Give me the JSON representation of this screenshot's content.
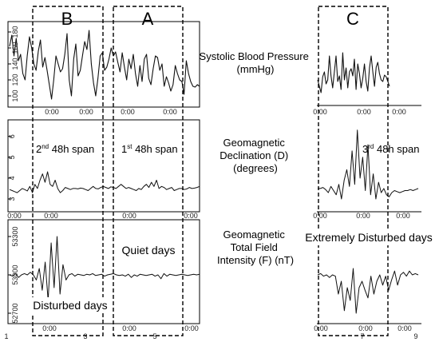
{
  "sections": [
    {
      "letter": "B"
    },
    {
      "letter": "A"
    },
    {
      "letter": "C"
    }
  ],
  "panel_titles": {
    "bp": [
      "Systolic Blood Pressure",
      "(mmHg)"
    ],
    "dec": [
      "Geomagnetic",
      "Declination (D)",
      "(degrees)"
    ],
    "tot": [
      "Geomagnetic",
      "Total Field",
      "Intensity (F) (nT)"
    ]
  },
  "span_labels": {
    "b": {
      "num": "2",
      "sup": "nd",
      "rest": " 48h span"
    },
    "a": {
      "num": "1",
      "sup": "st",
      "rest": " 48h span"
    },
    "c": {
      "num": "3",
      "sup": "rd",
      "rest": " 48h span"
    }
  },
  "annotations": {
    "quiet": "Quiet days",
    "disturbed": "Disturbed days",
    "extreme": "Extremely Disturbed days"
  },
  "time_tick_label": "0:00",
  "colors": {
    "line": "#111111",
    "box": "#000000",
    "frame": "#000000"
  },
  "chart_data": [
    {
      "type": "line",
      "id": "bp-left",
      "ylabel_ticks": [
        100,
        120,
        140,
        160,
        180
      ],
      "ylim": [
        90,
        190
      ],
      "values": [
        162,
        176,
        150,
        172,
        144,
        152,
        128,
        120,
        150,
        174,
        160,
        140,
        132,
        156,
        170,
        136,
        148,
        132,
        114,
        96,
        120,
        150,
        140,
        130,
        134,
        152,
        178,
        120,
        100,
        146,
        165,
        125,
        132,
        150,
        168,
        158,
        182,
        140,
        116,
        100,
        122,
        150,
        154,
        132,
        136,
        146,
        160,
        150,
        155,
        142,
        130,
        154,
        136,
        120,
        146,
        134,
        152,
        128,
        112,
        138,
        118,
        146,
        152,
        122,
        114,
        134,
        150,
        148,
        132,
        140,
        112,
        124,
        116,
        106,
        114,
        138,
        128,
        120,
        118,
        102,
        144,
        128,
        118,
        112,
        111,
        114,
        112
      ],
      "x_tick_labels": [
        "0:00",
        "0:00",
        "0:00",
        "0:00"
      ]
    },
    {
      "type": "line",
      "id": "bp-right",
      "values": [
        120,
        112,
        104,
        124,
        130,
        115,
        120,
        150,
        125,
        110,
        130,
        150,
        118,
        125,
        108,
        154,
        120,
        135,
        110,
        130,
        134,
        125,
        146,
        108,
        140,
        128,
        110,
        122,
        140,
        118,
        106,
        135,
        150,
        130,
        112,
        136,
        142,
        128,
        120,
        118,
        126,
        124,
        118,
        112
      ],
      "x_tick_labels": [
        "0:00",
        "0:00",
        "0:00"
      ]
    },
    {
      "type": "line",
      "id": "dec-left",
      "ylabel_ticks": [
        3,
        4,
        5,
        6
      ],
      "ylim": [
        2.5,
        6.6
      ],
      "values": [
        3.45,
        3.4,
        3.35,
        3.3,
        3.4,
        3.5,
        3.45,
        3.38,
        3.6,
        3.3,
        3.7,
        3.5,
        3.9,
        4.2,
        3.8,
        4.3,
        3.7,
        3.6,
        3.9,
        3.5,
        3.3,
        3.4,
        3.55,
        3.5,
        3.45,
        3.5,
        3.5,
        3.48,
        3.52,
        3.5,
        3.45,
        3.4,
        3.5,
        3.6,
        3.5,
        3.48,
        3.55,
        3.6,
        3.55,
        3.5,
        3.58,
        3.55,
        3.5,
        3.6,
        3.7,
        3.6,
        3.5,
        3.55,
        3.5,
        3.45,
        3.4,
        3.5,
        3.45,
        3.6,
        3.7,
        3.55,
        3.8,
        3.6,
        3.9,
        3.5,
        3.6,
        3.55,
        3.45,
        3.5,
        3.55,
        3.4,
        3.45,
        3.5,
        3.5,
        3.45,
        3.48,
        3.55,
        3.5,
        3.52,
        3.55,
        3.6
      ],
      "x_tick_labels": [
        "0:00",
        "0:00",
        "0:00",
        "0:00"
      ]
    },
    {
      "type": "line",
      "id": "dec-right",
      "values": [
        3.5,
        3.5,
        3.55,
        3.45,
        3.3,
        3.6,
        3.4,
        3.2,
        3.7,
        3.0,
        3.9,
        4.4,
        3.6,
        5.3,
        3.7,
        6.3,
        4.0,
        5.0,
        3.4,
        5.6,
        3.2,
        4.2,
        3.0,
        3.8,
        3.3,
        3.5,
        3.2,
        3.1,
        3.3,
        3.4,
        3.35,
        3.3,
        3.35,
        3.4,
        3.4,
        3.45,
        3.4,
        3.45,
        3.5
      ],
      "x_tick_labels": [
        "0:00",
        "0:00",
        "0:00"
      ]
    },
    {
      "type": "line",
      "id": "tot-left",
      "ylabel_ticks": [
        52700,
        53000,
        53300
      ],
      "ylim": [
        52650,
        53400
      ],
      "values": [
        53000,
        52990,
        53010,
        52980,
        53000,
        53010,
        53000,
        53020,
        53000,
        52960,
        53050,
        52880,
        53100,
        52800,
        53250,
        52900,
        53300,
        52850,
        53080,
        52960,
        53000,
        53010,
        52990,
        53005,
        53000,
        52995,
        53005,
        53000,
        53010,
        52995,
        53000,
        53005,
        52990,
        53000,
        53005,
        53010,
        53000,
        52995,
        53000,
        52990,
        53005,
        52980,
        53000,
        52990,
        53005,
        53000,
        52995,
        53000,
        53005,
        52990,
        53000,
        52970,
        53010,
        52990,
        53005,
        53000,
        52995,
        53000,
        53005,
        53000,
        52995,
        53000,
        53005,
        53000,
        53005
      ],
      "x_tick_labels": [
        "0:00",
        "0:00",
        "0:00"
      ]
    },
    {
      "type": "line",
      "id": "tot-right",
      "values": [
        53000,
        53010,
        52990,
        53000,
        52980,
        53000,
        52990,
        52850,
        52950,
        52720,
        52900,
        52800,
        53050,
        52700,
        52900,
        52950,
        52880,
        52820,
        52990,
        52850,
        52950,
        53000,
        52920,
        52990,
        52880,
        52960,
        53030,
        52920,
        53000,
        53020,
        52990,
        53030,
        53000,
        53010,
        53000
      ],
      "x_tick_labels": [
        "0:00",
        "0:00",
        "0:00"
      ]
    }
  ],
  "axis_numbers": {
    "bottom_left": [
      "1",
      "3",
      "5"
    ],
    "bottom_right": [
      "7",
      "9"
    ]
  }
}
